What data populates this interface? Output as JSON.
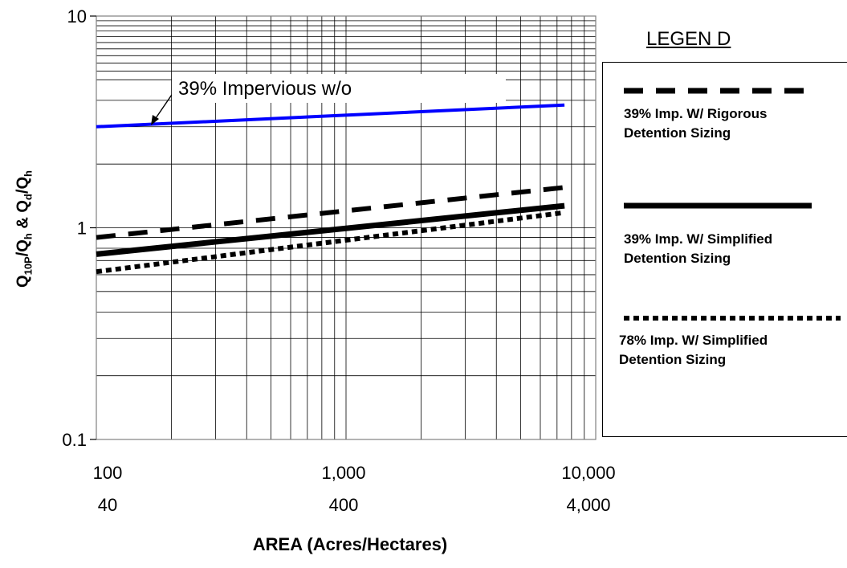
{
  "chart_data": {
    "type": "line",
    "title": "",
    "xscale": "log",
    "yscale": "log",
    "xlim": [
      100,
      10000
    ],
    "ylim": [
      0.1,
      10
    ],
    "grid": true,
    "xticks": [
      {
        "value": 100,
        "label": "100",
        "sublabel": "40"
      },
      {
        "value": 1000,
        "label": "1,000",
        "sublabel": "400"
      },
      {
        "value": 10000,
        "label": "10,000",
        "sublabel": "4,000"
      }
    ],
    "yticks": [
      {
        "value": 10,
        "label": "10"
      },
      {
        "value": 1,
        "label": "1"
      },
      {
        "value": 0.1,
        "label": "0.1"
      }
    ],
    "xlabel": "AREA (Acres/Hectares)",
    "ylabel_parts": [
      "Q",
      "10P",
      "/Q",
      "h",
      " & Q",
      "d",
      "/Q",
      "h"
    ],
    "legend_title": "LEGEN D",
    "legend_position": "right",
    "annotation": "39% Impervious w/o",
    "series": [
      {
        "id": "impervious",
        "style": "solid-thin",
        "color": "#0000ff",
        "x": [
          100,
          7500
        ],
        "y": [
          3.0,
          3.8
        ]
      },
      {
        "id": "rigorous",
        "name": "39% Imp. W/ Rigorous Detention Sizing",
        "style": "dashed",
        "color": "#000000",
        "x": [
          100,
          7500
        ],
        "y": [
          0.9,
          1.55
        ]
      },
      {
        "id": "simplified",
        "name": "39% Imp. W/ Simplified Detention Sizing",
        "style": "solid-thick",
        "color": "#000000",
        "x": [
          100,
          7500
        ],
        "y": [
          0.75,
          1.27
        ]
      },
      {
        "id": "imp78",
        "name": "78% Imp. W/ Simplified Detention Sizing",
        "style": "dotted",
        "color": "#000000",
        "x": [
          100,
          7500
        ],
        "y": [
          0.62,
          1.18
        ]
      }
    ]
  }
}
